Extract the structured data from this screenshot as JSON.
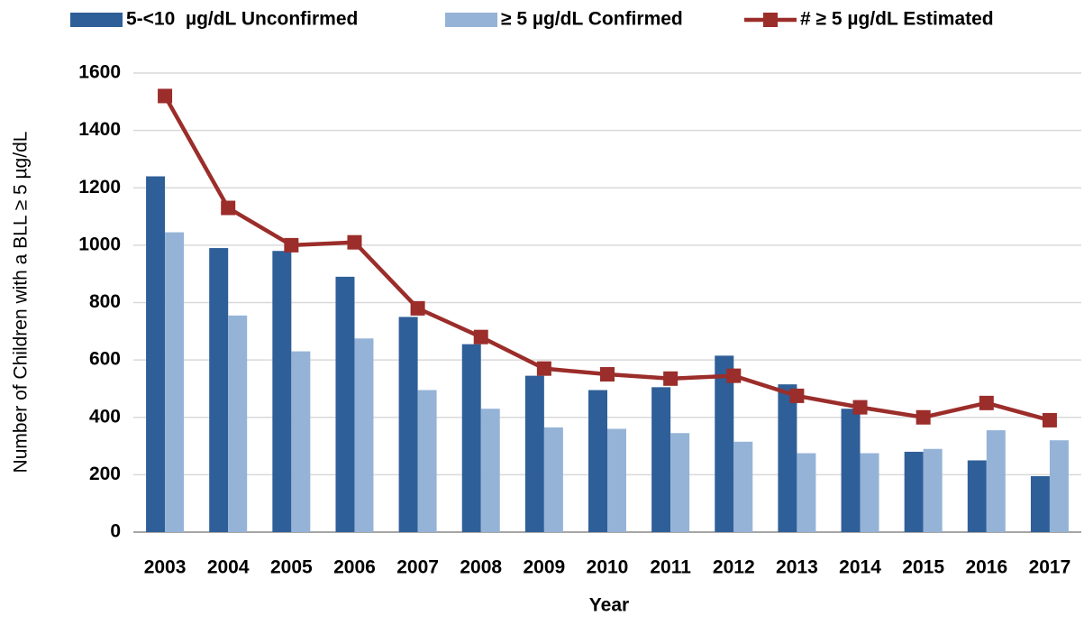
{
  "chart_data": {
    "type": "bar_line",
    "x_label": "Year",
    "y_label": "Number of Children with a BLL ≥ 5 µg/dL",
    "categories": [
      "2003",
      "2004",
      "2005",
      "2006",
      "2007",
      "2008",
      "2009",
      "2010",
      "2011",
      "2012",
      "2013",
      "2014",
      "2015",
      "2016",
      "2017"
    ],
    "series": [
      {
        "name": "5-<10  µg/dL Unconfirmed",
        "type": "bar",
        "color": "#2f5f98",
        "values": [
          1240,
          990,
          980,
          890,
          750,
          655,
          545,
          495,
          505,
          615,
          515,
          430,
          280,
          250,
          195
        ]
      },
      {
        "name": "≥ 5 µg/dL Confirmed",
        "type": "bar",
        "color": "#95b3d7",
        "values": [
          1045,
          755,
          630,
          675,
          495,
          430,
          365,
          360,
          345,
          315,
          275,
          275,
          290,
          355,
          320
        ]
      },
      {
        "name": "# ≥ 5 µg/dL Estimated",
        "type": "line",
        "color": "#9b2d2a",
        "values": [
          1520,
          1130,
          1000,
          1010,
          780,
          680,
          570,
          550,
          535,
          545,
          475,
          435,
          400,
          450,
          390
        ]
      }
    ],
    "ylim": [
      0,
      1600
    ],
    "yticks": [
      0,
      200,
      400,
      600,
      800,
      1000,
      1200,
      1400,
      1600
    ],
    "grid": true,
    "legend": "top"
  }
}
